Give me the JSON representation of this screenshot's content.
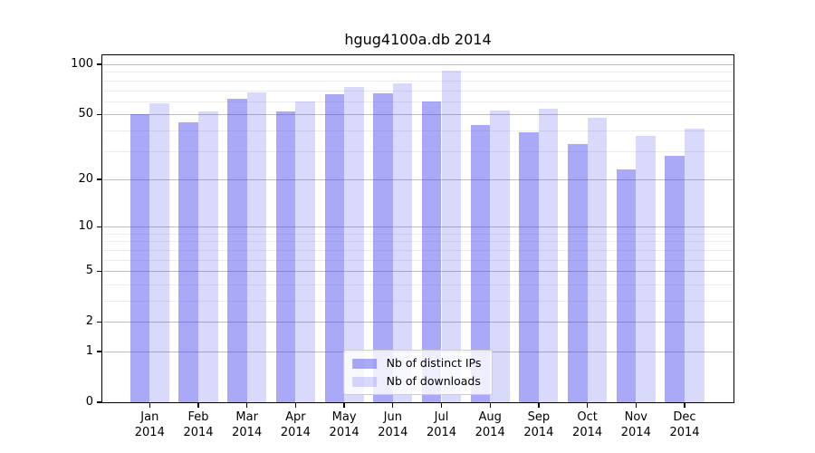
{
  "title": "hgug4100a.db 2014",
  "chart_data": {
    "type": "bar",
    "title": "hgug4100a.db 2014",
    "categories": [
      "Jan",
      "Feb",
      "Mar",
      "Apr",
      "May",
      "Jun",
      "Jul",
      "Aug",
      "Sep",
      "Oct",
      "Nov",
      "Dec"
    ],
    "xtick_year": "2014",
    "series": [
      {
        "name": "Nb of distinct IPs",
        "color_rgba": "rgba(64,64,240,0.45)",
        "color_hex_on_white": "#a9a9f7",
        "values": [
          50,
          45,
          62,
          52,
          66,
          67,
          60,
          43,
          39,
          33,
          23,
          28
        ]
      },
      {
        "name": "Nb of downloads",
        "color_rgba": "rgba(64,64,240,0.20)",
        "color_hex_on_white": "#d9d9fc",
        "values": [
          58,
          52,
          68,
          60,
          73,
          77,
          92,
          53,
          54,
          48,
          37,
          41
        ]
      }
    ],
    "xlabel": "",
    "ylabel": "",
    "yscale": "log1p",
    "ylim": [
      0,
      113
    ],
    "yticks": [
      0,
      1,
      2,
      5,
      10,
      20,
      50,
      100
    ],
    "ytick_labels": [
      "0",
      "1",
      "2",
      "5",
      "10",
      "20",
      "50",
      "100"
    ],
    "minor_gridlines": [
      3,
      4,
      6,
      7,
      8,
      9,
      30,
      40,
      60,
      70,
      80,
      90
    ],
    "grid": true,
    "legend_position": "lower center",
    "colors": {
      "major_grid": "#bdbdbd",
      "minor_grid": "#ededed",
      "axis": "#000000",
      "background": "#ffffff"
    }
  },
  "legend": {
    "items": [
      {
        "label": "Nb of distinct IPs",
        "color": "rgba(64,64,240,0.45)"
      },
      {
        "label": "Nb of downloads",
        "color": "rgba(64,64,240,0.20)"
      }
    ]
  }
}
